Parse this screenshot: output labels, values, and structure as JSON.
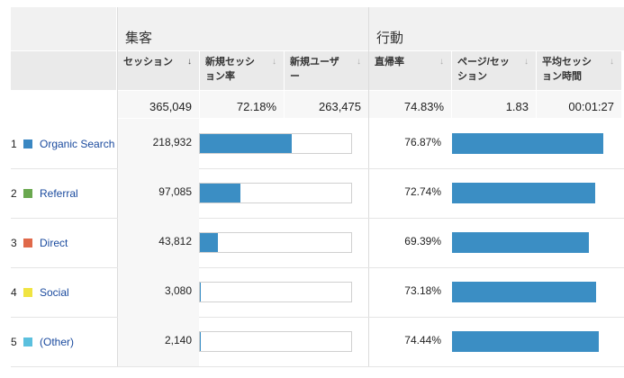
{
  "groups": {
    "acquisition": "集客",
    "behavior": "行動"
  },
  "columns": {
    "sessions": "セッション",
    "new_session_rate": "新規セッション率",
    "new_users": "新規ユーザー",
    "bounce_rate": "直帰率",
    "pages_per_session": "ページ/セッション",
    "avg_session_duration": "平均セッション時間"
  },
  "totals": {
    "sessions": "365,049",
    "new_session_rate": "72.18%",
    "new_users": "263,475",
    "bounce_rate": "74.83%",
    "pages_per_session": "1.83",
    "avg_session_duration": "00:01:27"
  },
  "rows": [
    {
      "num": "1",
      "channel": "Organic Search",
      "sessions": "218,932",
      "bounce": "76.87%",
      "color": "#3a87c2",
      "session_share": 0.6,
      "bounce_value": 0.7687
    },
    {
      "num": "2",
      "channel": "Referral",
      "sessions": "97,085",
      "bounce": "72.74%",
      "color": "#6aa84f",
      "session_share": 0.266,
      "bounce_value": 0.7274
    },
    {
      "num": "3",
      "channel": "Direct",
      "sessions": "43,812",
      "bounce": "69.39%",
      "color": "#e0694a",
      "session_share": 0.12,
      "bounce_value": 0.6939
    },
    {
      "num": "4",
      "channel": "Social",
      "sessions": "3,080",
      "bounce": "73.18%",
      "color": "#f0e442",
      "session_share": 0.0084,
      "bounce_value": 0.7318
    },
    {
      "num": "5",
      "channel": "(Other)",
      "sessions": "2,140",
      "bounce": "74.44%",
      "color": "#5bc0de",
      "session_share": 0.0059,
      "bounce_value": 0.7444
    }
  ]
}
